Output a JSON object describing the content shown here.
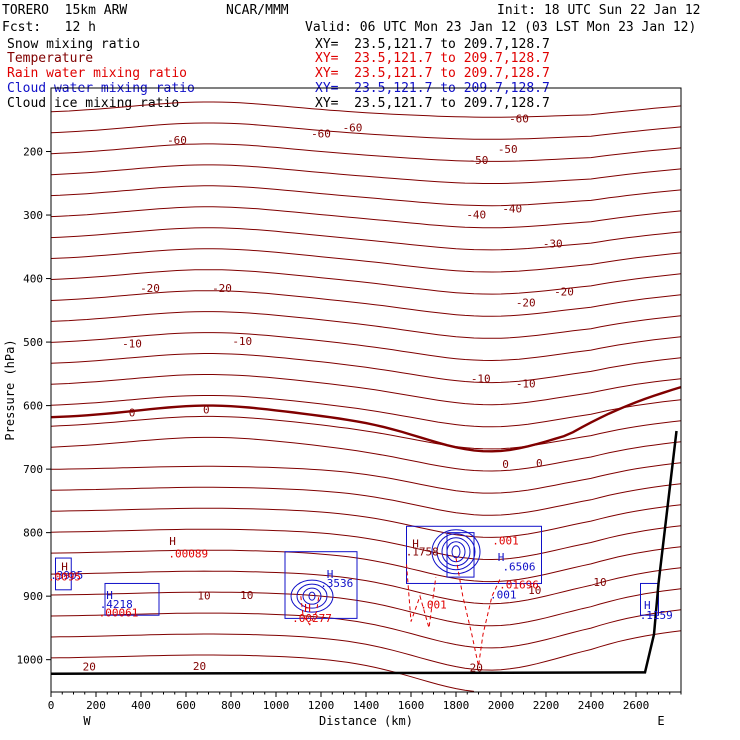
{
  "header": {
    "model": "TORERO  15km ARW",
    "center": "NCAR/MMM",
    "init": "Init: 18 UTC Sun 22 Jan 12",
    "fcst": "Fcst:   12 h",
    "valid": "Valid: 06 UTC Mon 23 Jan 12 (03 LST Mon 23 Jan 12)"
  },
  "fields": [
    {
      "name": "Snow mixing ratio",
      "xy": "XY=  23.5,121.7 to 209.7,128.7",
      "color": "#000000"
    },
    {
      "name": "Temperature",
      "xy": "XY=  23.5,121.7 to 209.7,128.7",
      "color": "#800000"
    },
    {
      "name": "Rain water mixing ratio",
      "xy": "XY=  23.5,121.7 to 209.7,128.7",
      "color": "#e00000"
    },
    {
      "name": "Cloud water mixing ratio",
      "xy": "XY=  23.5,121.7 to 209.7,128.7",
      "color": "#1010c8"
    },
    {
      "name": "Cloud ice mixing ratio",
      "xy": "XY=  23.5,121.7 to 209.7,128.7",
      "color": "#000000"
    }
  ],
  "chart_data": {
    "type": "contour",
    "xlabel": "Distance (km)",
    "ylabel": "Pressure (hPa)",
    "xlim": [
      0,
      2800
    ],
    "ylim": [
      1050,
      100
    ],
    "x_ticks": [
      0,
      200,
      400,
      600,
      800,
      1000,
      1200,
      1400,
      1600,
      1800,
      2000,
      2200,
      2400,
      2600
    ],
    "y_ticks": [
      200,
      300,
      400,
      500,
      600,
      700,
      800,
      900,
      1000
    ],
    "x_end_labels": {
      "left": "W",
      "right": "E"
    },
    "temperature_contour_labels": [
      {
        "x": 560,
        "p": 182,
        "text": "-60"
      },
      {
        "x": 1200,
        "p": 172,
        "text": "-60"
      },
      {
        "x": 1340,
        "p": 162,
        "text": "-60"
      },
      {
        "x": 2080,
        "p": 148,
        "text": "-60"
      },
      {
        "x": 1900,
        "p": 213,
        "text": "-50"
      },
      {
        "x": 2030,
        "p": 196,
        "text": "-50"
      },
      {
        "x": 1890,
        "p": 299,
        "text": "-40"
      },
      {
        "x": 2050,
        "p": 290,
        "text": "-40"
      },
      {
        "x": 2230,
        "p": 345,
        "text": "-30"
      },
      {
        "x": 440,
        "p": 415,
        "text": "-20"
      },
      {
        "x": 760,
        "p": 415,
        "text": "-20"
      },
      {
        "x": 2110,
        "p": 438,
        "text": "-20"
      },
      {
        "x": 2280,
        "p": 420,
        "text": "-20"
      },
      {
        "x": 360,
        "p": 502,
        "text": "-10"
      },
      {
        "x": 850,
        "p": 498,
        "text": "-10"
      },
      {
        "x": 1910,
        "p": 557,
        "text": "-10"
      },
      {
        "x": 2110,
        "p": 565,
        "text": "-10"
      },
      {
        "x": 360,
        "p": 611,
        "text": "0"
      },
      {
        "x": 690,
        "p": 606,
        "text": "0"
      },
      {
        "x": 2020,
        "p": 692,
        "text": "0"
      },
      {
        "x": 2170,
        "p": 690,
        "text": "0"
      },
      {
        "x": 2440,
        "p": 878,
        "text": "10"
      },
      {
        "x": 680,
        "p": 899,
        "text": "10"
      },
      {
        "x": 870,
        "p": 898,
        "text": "10"
      },
      {
        "x": 2150,
        "p": 890,
        "text": "10"
      },
      {
        "x": 170,
        "p": 1011,
        "text": "20"
      },
      {
        "x": 660,
        "p": 1010,
        "text": "20"
      },
      {
        "x": 1890,
        "p": 1012,
        "text": "20"
      }
    ],
    "max_labels": [
      {
        "x": 60,
        "p": 853,
        "text": "H",
        "color": "#800000"
      },
      {
        "x": 70,
        "p": 867,
        "text": ".3905",
        "color": "#1010c8"
      },
      {
        "x": 60,
        "p": 869,
        "text": ".0095",
        "color": "#e00000"
      },
      {
        "x": 260,
        "p": 898,
        "text": "H",
        "color": "#1010c8"
      },
      {
        "x": 290,
        "p": 912,
        "text": ".4218",
        "color": "#1010c8"
      },
      {
        "x": 300,
        "p": 926,
        "text": ".00061",
        "color": "#e00000"
      },
      {
        "x": 540,
        "p": 813,
        "text": "H",
        "color": "#800000"
      },
      {
        "x": 610,
        "p": 833,
        "text": ".00089",
        "color": "#e00000"
      },
      {
        "x": 1240,
        "p": 865,
        "text": "H",
        "color": "#1010c8"
      },
      {
        "x": 1270,
        "p": 879,
        "text": ".3536",
        "color": "#1010c8"
      },
      {
        "x": 1140,
        "p": 919,
        "text": "H",
        "color": "#e00000"
      },
      {
        "x": 1160,
        "p": 934,
        "text": ".00277",
        "color": "#e00000"
      },
      {
        "x": 1620,
        "p": 817,
        "text": "H",
        "color": "#800000"
      },
      {
        "x": 1650,
        "p": 830,
        "text": ".1758",
        "color": "#800000"
      },
      {
        "x": 2020,
        "p": 812,
        "text": ".001",
        "color": "#e00000"
      },
      {
        "x": 2000,
        "p": 838,
        "text": "H",
        "color": "#1010c8"
      },
      {
        "x": 2080,
        "p": 853,
        "text": ".6506",
        "color": "#1010c8"
      },
      {
        "x": 2080,
        "p": 882,
        "text": ".01696",
        "color": "#e00000"
      },
      {
        "x": 2010,
        "p": 897,
        "text": ".001",
        "color": "#1010c8"
      },
      {
        "x": 1700,
        "p": 913,
        "text": ".001",
        "color": "#e00000"
      },
      {
        "x": 2650,
        "p": 914,
        "text": "H",
        "color": "#1010c8"
      },
      {
        "x": 2690,
        "p": 930,
        "text": ".1159",
        "color": "#1010c8"
      }
    ]
  },
  "colors": {
    "temperature": "#800000",
    "rain": "#e00000",
    "cloud_water": "#1010c8",
    "terrain": "#000000"
  }
}
